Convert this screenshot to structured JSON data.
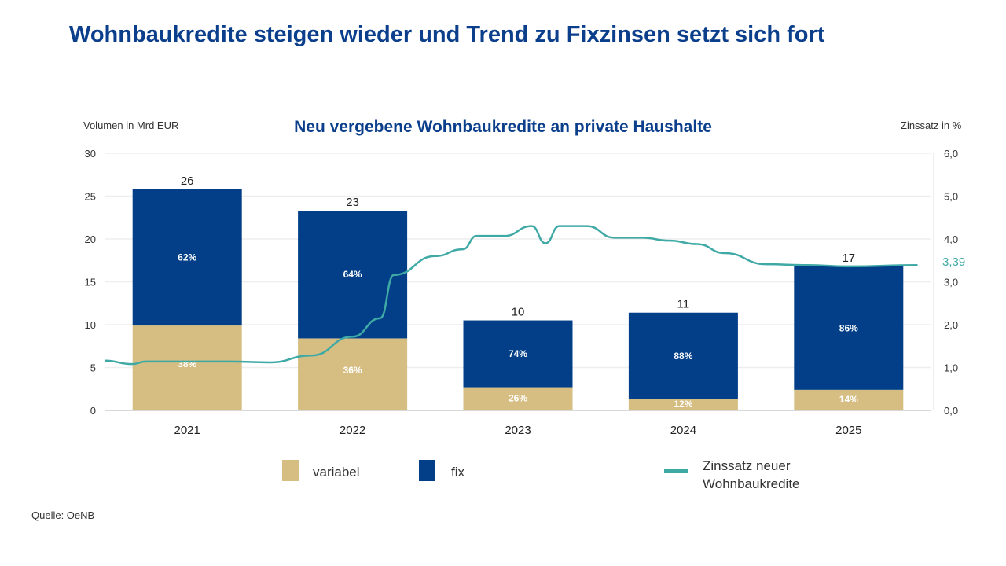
{
  "page": {
    "title": "Wohnbaukredite steigen wieder und Trend zu Fixzinsen setzt sich fort",
    "source": "Quelle: OeNB"
  },
  "chart_data": {
    "type": "bar",
    "title": "Neu vergebene Wohnbaukredite an private Haushalte",
    "ylabel": "Volumen in Mrd EUR",
    "y2label": "Zinssatz in %",
    "ylim": [
      0,
      30
    ],
    "y2lim": [
      0,
      6
    ],
    "yticks": [
      "0",
      "5",
      "10",
      "15",
      "20",
      "25",
      "30"
    ],
    "y2ticks": [
      "0,0",
      "1,0",
      "2,0",
      "3,0",
      "4,0",
      "5,0",
      "6,0"
    ],
    "categories": [
      "2021",
      "2022",
      "2023",
      "2024",
      "2025"
    ],
    "stacked": true,
    "grid": true,
    "legend_placement": "bottom",
    "totals": [
      "26",
      "23",
      "10",
      "11",
      "17"
    ],
    "series": [
      {
        "name": "variabel",
        "color": "#d6be82",
        "values": [
          9.9,
          8.4,
          2.7,
          1.3,
          2.4
        ],
        "labels": [
          "38%",
          "36%",
          "26%",
          "12%",
          "14%"
        ]
      },
      {
        "name": "fix",
        "color": "#023f88",
        "values": [
          15.9,
          14.9,
          7.8,
          10.1,
          14.4
        ],
        "labels": [
          "62%",
          "64%",
          "74%",
          "88%",
          "86%"
        ]
      },
      {
        "name": "Zinssatz neuer Wohnbaukredite",
        "type": "line",
        "axis": "right",
        "color": "#3fa9a5",
        "last_label": "3,39",
        "x": [
          "2021-01",
          "2021-03",
          "2021-04",
          "2021-10",
          "2022-01",
          "2022-04",
          "2022-07",
          "2022-09",
          "2022-10",
          "2023-01",
          "2023-03",
          "2023-04",
          "2023-06",
          "2023-08",
          "2023-09",
          "2023-10",
          "2023-12",
          "2024-02",
          "2024-04",
          "2024-06",
          "2024-08",
          "2024-10",
          "2025-01",
          "2025-04",
          "2025-07",
          "2025-12"
        ],
        "values": [
          1.16,
          1.08,
          1.14,
          1.14,
          1.12,
          1.28,
          1.72,
          2.15,
          3.16,
          3.6,
          3.76,
          4.07,
          4.07,
          4.3,
          3.9,
          4.3,
          4.3,
          4.03,
          4.03,
          3.96,
          3.88,
          3.67,
          3.41,
          3.39,
          3.36,
          3.39
        ]
      }
    ]
  }
}
